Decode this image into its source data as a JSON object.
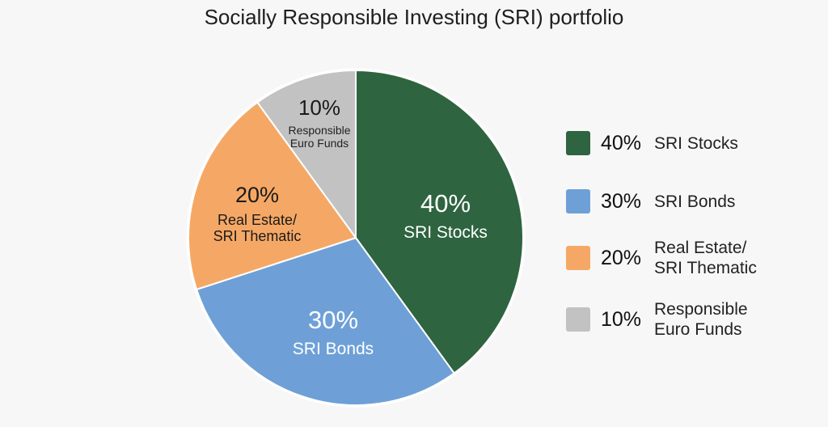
{
  "chart_data": {
    "type": "pie",
    "title": "Socially Responsible Investing (SRI) portfolio",
    "slices": [
      {
        "percent_label": "40%",
        "value": 40,
        "label_line1": "SRI Stocks",
        "label_line2": "",
        "legend_line1": "SRI Stocks",
        "legend_line2": "",
        "color": "#2e6440"
      },
      {
        "percent_label": "30%",
        "value": 30,
        "label_line1": "SRI Bonds",
        "label_line2": "",
        "legend_line1": "SRI Bonds",
        "legend_line2": "",
        "color": "#6ea0d7"
      },
      {
        "percent_label": "20%",
        "value": 20,
        "label_line1": "Real Estate/",
        "label_line2": "SRI Thematic",
        "legend_line1": "Real Estate/",
        "legend_line2": "SRI Thematic",
        "color": "#f5a865"
      },
      {
        "percent_label": "10%",
        "value": 10,
        "label_line1": "Responsible",
        "label_line2": "Euro Funds",
        "legend_line1": "Responsible",
        "legend_line2": "Euro Funds",
        "color": "#c2c2c2"
      }
    ],
    "start_position": "12 o'clock",
    "direction": "clockwise",
    "legend_position": "right"
  }
}
